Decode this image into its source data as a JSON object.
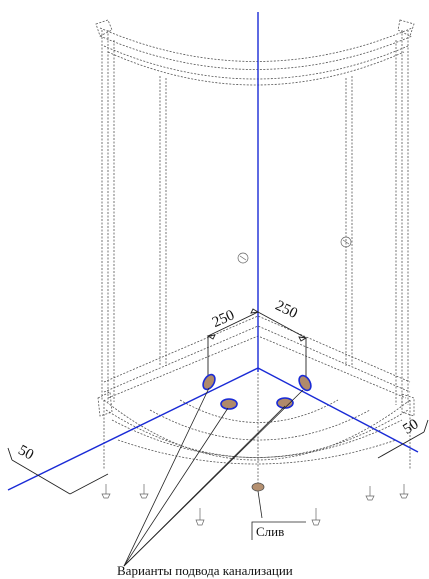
{
  "dimensions": {
    "left_offset": "250",
    "right_offset": "250",
    "left_edge": "50",
    "right_edge": "50"
  },
  "labels": {
    "drain": "Слив",
    "caption": "Варианты подвода канализации"
  },
  "colors": {
    "axis": "#1a2bd6",
    "hole_fill": "#b08a6a",
    "wireframe": "#555555"
  }
}
